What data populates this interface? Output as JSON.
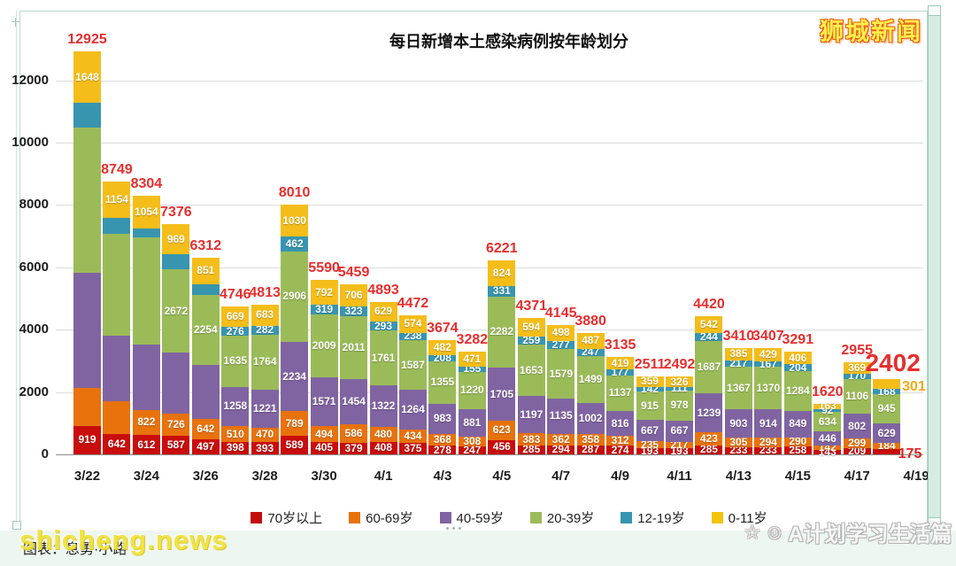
{
  "page": {
    "title": "每日新增本土感染病例按年龄划分",
    "watermark_top_right": "狮城新闻",
    "watermark_bottom_left": "shicheng.news",
    "credit_text": "图表：息勇·小路",
    "watermark_bottom_right": "A计划学习生活篇",
    "watermark_icon_star": "☆",
    "watermark_icon_smiley": "☺"
  },
  "y_axis": {
    "tick_labels": [
      "0",
      "2000",
      "4000",
      "6000",
      "8000",
      "10000",
      "12000"
    ],
    "tick_values": [
      0,
      2000,
      4000,
      6000,
      8000,
      10000,
      12000
    ]
  },
  "x_axis": {
    "tick_labels": [
      "3/22",
      "3/24",
      "3/26",
      "3/28",
      "3/30",
      "4/1",
      "4/3",
      "4/5",
      "4/7",
      "4/9",
      "4/11",
      "4/13",
      "4/15",
      "4/17",
      "4/19"
    ]
  },
  "legend": {
    "items": [
      {
        "label": "70岁以上",
        "color": "#C40D0D"
      },
      {
        "label": "60-69岁",
        "color": "#E8720C"
      },
      {
        "label": "40-59岁",
        "color": "#8064A2"
      },
      {
        "label": "20-39岁",
        "color": "#9BBB59"
      },
      {
        "label": "12-19岁",
        "color": "#3795B0"
      },
      {
        "label": "0-11岁",
        "color": "#F2C30C"
      }
    ]
  },
  "chart_data": {
    "type": "bar",
    "stacked": true,
    "title": "每日新增本土感染病例按年龄划分",
    "ylim": [
      0,
      13100
    ],
    "grid": true,
    "series_names": [
      "70岁以上",
      "60-69岁",
      "40-59岁",
      "20-39岁",
      "12-19岁",
      "0-11岁"
    ],
    "colors": [
      "#C90D0D",
      "#E8720C",
      "#8064A2",
      "#9BBB59",
      "#3795B0",
      "#F4BD1A"
    ],
    "total_label_color": "#E62E2E",
    "displaced_yellow_color": "#F2A918",
    "displaced_red_color": "#E02020",
    "categories": [
      "3/22",
      "3/23",
      "3/24",
      "3/25",
      "3/26",
      "3/27",
      "3/28",
      "3/29",
      "3/30",
      "3/31",
      "4/1",
      "4/2",
      "4/3",
      "4/4",
      "4/5",
      "4/6",
      "4/7",
      "4/8",
      "4/9",
      "4/10",
      "4/11",
      "4/12",
      "4/13",
      "4/14",
      "4/15",
      "4/16",
      "4/17",
      "4/18"
    ],
    "bars": [
      {
        "date": "3/22",
        "total": 12925,
        "values": [
          919,
          1204,
          3696,
          4678,
          780,
          1648
        ],
        "show": [
          1,
          0,
          0,
          0,
          0,
          1
        ]
      },
      {
        "date": "3/23",
        "total": 8749,
        "values": [
          642,
          1050,
          2110,
          3280,
          513,
          1154
        ],
        "show": [
          1,
          0,
          0,
          0,
          0,
          1
        ]
      },
      {
        "date": "3/24",
        "total": 8304,
        "values": [
          612,
          822,
          2100,
          3430,
          286,
          1054
        ],
        "show": [
          1,
          1,
          0,
          0,
          0,
          1
        ]
      },
      {
        "date": "3/25",
        "total": 7376,
        "values": [
          587,
          726,
          1950,
          2672,
          472,
          969
        ],
        "show": [
          1,
          1,
          0,
          1,
          0,
          1
        ]
      },
      {
        "date": "3/26",
        "total": 6312,
        "values": [
          497,
          642,
          1720,
          2254,
          348,
          851
        ],
        "show": [
          1,
          1,
          0,
          1,
          0,
          1
        ]
      },
      {
        "date": "3/27",
        "total": 4746,
        "values": [
          398,
          510,
          1258,
          1635,
          276,
          669
        ],
        "show": [
          1,
          1,
          1,
          1,
          1,
          1
        ]
      },
      {
        "date": "3/28",
        "total": 4813,
        "values": [
          393,
          470,
          1221,
          1764,
          282,
          683
        ],
        "show": [
          1,
          1,
          1,
          1,
          1,
          1
        ]
      },
      {
        "date": "3/29",
        "total": 8010,
        "values": [
          589,
          789,
          2234,
          2906,
          462,
          1030
        ],
        "show": [
          1,
          1,
          1,
          1,
          1,
          1
        ]
      },
      {
        "date": "3/30",
        "total": 5590,
        "values": [
          405,
          494,
          1571,
          2009,
          319,
          792
        ],
        "show": [
          1,
          1,
          1,
          1,
          1,
          1
        ]
      },
      {
        "date": "3/31",
        "total": 5459,
        "values": [
          379,
          586,
          1454,
          2011,
          323,
          706
        ],
        "show": [
          1,
          1,
          1,
          1,
          1,
          1
        ]
      },
      {
        "date": "4/1",
        "total": 4893,
        "values": [
          408,
          480,
          1322,
          1761,
          293,
          629
        ],
        "show": [
          1,
          1,
          1,
          1,
          1,
          1
        ]
      },
      {
        "date": "4/2",
        "total": 4472,
        "values": [
          375,
          434,
          1264,
          1587,
          238,
          574
        ],
        "show": [
          1,
          1,
          1,
          1,
          1,
          1
        ]
      },
      {
        "date": "4/3",
        "total": 3674,
        "values": [
          278,
          368,
          983,
          1355,
          208,
          482
        ],
        "show": [
          1,
          1,
          1,
          1,
          1,
          1
        ]
      },
      {
        "date": "4/4",
        "total": 3282,
        "values": [
          247,
          308,
          881,
          1220,
          155,
          471
        ],
        "show": [
          1,
          1,
          1,
          1,
          1,
          1
        ]
      },
      {
        "date": "4/5",
        "total": 6221,
        "values": [
          456,
          623,
          1705,
          2282,
          331,
          824
        ],
        "show": [
          1,
          1,
          1,
          1,
          1,
          1
        ]
      },
      {
        "date": "4/6",
        "total": 4371,
        "values": [
          285,
          383,
          1197,
          1653,
          259,
          594
        ],
        "show": [
          1,
          1,
          1,
          1,
          1,
          1
        ]
      },
      {
        "date": "4/7",
        "total": 4145,
        "values": [
          294,
          362,
          1135,
          1579,
          277,
          498
        ],
        "show": [
          1,
          1,
          1,
          1,
          1,
          1
        ]
      },
      {
        "date": "4/8",
        "total": 3880,
        "values": [
          287,
          358,
          1002,
          1499,
          247,
          487
        ],
        "show": [
          1,
          1,
          1,
          1,
          1,
          1
        ]
      },
      {
        "date": "4/9",
        "total": 3135,
        "values": [
          274,
          312,
          816,
          1137,
          177,
          419
        ],
        "show": [
          1,
          1,
          1,
          1,
          1,
          1
        ]
      },
      {
        "date": "4/10",
        "total": 2511,
        "values": [
          193,
          235,
          667,
          915,
          142,
          359
        ],
        "show": [
          1,
          1,
          1,
          1,
          1,
          1
        ]
      },
      {
        "date": "4/11",
        "total": 2492,
        "values": [
          193,
          217,
          667,
          978,
          111,
          326
        ],
        "show": [
          1,
          1,
          1,
          1,
          1,
          1
        ]
      },
      {
        "date": "4/12",
        "total": 4420,
        "values": [
          285,
          423,
          1239,
          1687,
          244,
          542
        ],
        "show": [
          1,
          1,
          1,
          1,
          1,
          1
        ]
      },
      {
        "date": "4/13",
        "total": 3410,
        "values": [
          233,
          305,
          903,
          1367,
          217,
          385
        ],
        "show": [
          1,
          1,
          1,
          1,
          1,
          1
        ]
      },
      {
        "date": "4/14",
        "total": 3407,
        "values": [
          233,
          294,
          914,
          1370,
          167,
          429
        ],
        "show": [
          1,
          1,
          1,
          1,
          1,
          1
        ]
      },
      {
        "date": "4/15",
        "total": 3291,
        "values": [
          258,
          290,
          849,
          1284,
          204,
          406
        ],
        "show": [
          1,
          1,
          1,
          1,
          1,
          1
        ]
      },
      {
        "date": "4/16",
        "total": 1620,
        "values": [
          143,
          142,
          446,
          634,
          92,
          163
        ],
        "show": [
          1,
          1,
          1,
          1,
          1,
          1
        ]
      },
      {
        "date": "4/17",
        "total": 2955,
        "values": [
          209,
          299,
          802,
          1106,
          170,
          369
        ],
        "show": [
          1,
          1,
          1,
          1,
          1,
          1
        ]
      },
      {
        "date": "4/18",
        "total": 2402,
        "values": [
          175,
          184,
          629,
          945,
          168,
          301
        ],
        "show": [
          3,
          1,
          1,
          1,
          1,
          2
        ],
        "big_total": true
      }
    ]
  }
}
